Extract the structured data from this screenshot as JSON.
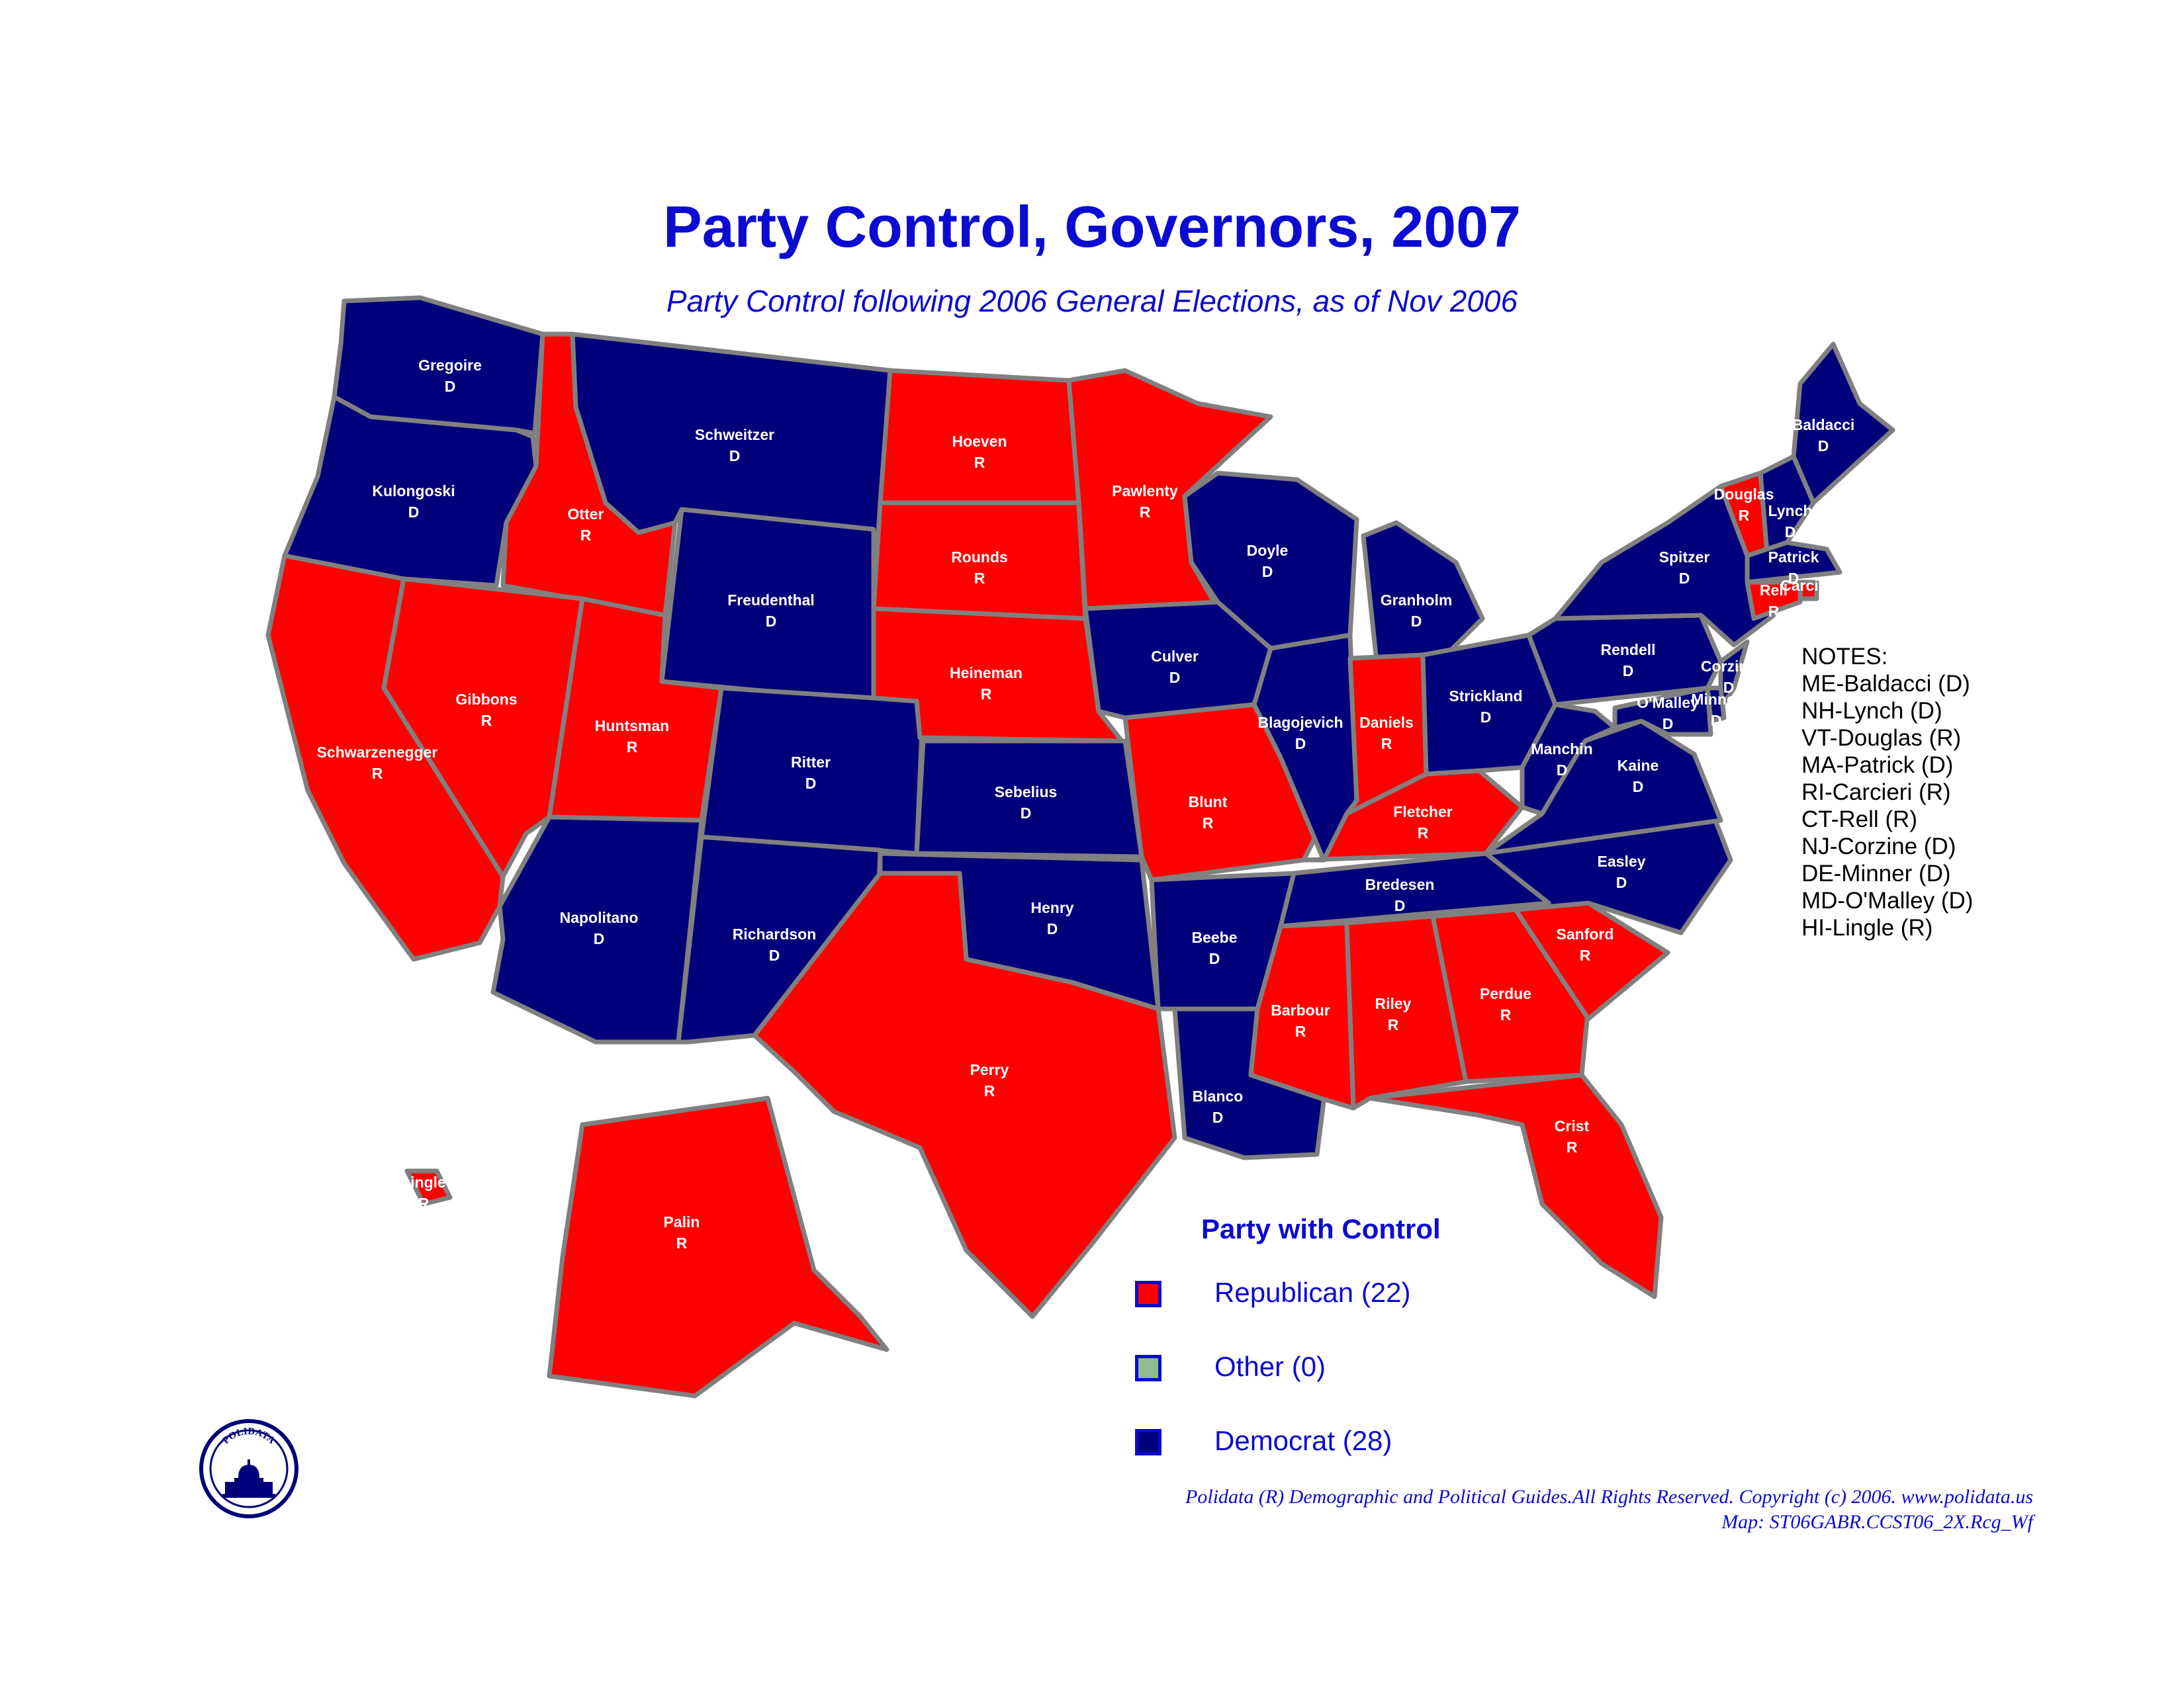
{
  "colors": {
    "republican": "#ff0000",
    "other": "#8fbc8f",
    "democrat": "#00007a",
    "border": "#808080",
    "title": "#0b0bd1",
    "text": "#000000"
  },
  "title": "Party Control, Governors, 2007",
  "subtitle": "Party Control following 2006 General Elections, as of Nov 2006",
  "states": {
    "WA": {
      "governor": "Gregoire",
      "party": "D"
    },
    "OR": {
      "governor": "Kulongoski",
      "party": "D"
    },
    "CA": {
      "governor": "Schwarzenegger",
      "party": "R"
    },
    "ID": {
      "governor": "Otter",
      "party": "R"
    },
    "NV": {
      "governor": "Gibbons",
      "party": "R"
    },
    "MT": {
      "governor": "Schweitzer",
      "party": "D"
    },
    "WY": {
      "governor": "Freudenthal",
      "party": "D"
    },
    "UT": {
      "governor": "Huntsman",
      "party": "R"
    },
    "AZ": {
      "governor": "Napolitano",
      "party": "D"
    },
    "CO": {
      "governor": "Ritter",
      "party": "D"
    },
    "NM": {
      "governor": "Richardson",
      "party": "D"
    },
    "ND": {
      "governor": "Hoeven",
      "party": "R"
    },
    "SD": {
      "governor": "Rounds",
      "party": "R"
    },
    "NE": {
      "governor": "Heineman",
      "party": "R"
    },
    "KS": {
      "governor": "Sebelius",
      "party": "D"
    },
    "OK": {
      "governor": "Henry",
      "party": "D"
    },
    "TX": {
      "governor": "Perry",
      "party": "R"
    },
    "MN": {
      "governor": "Pawlenty",
      "party": "R"
    },
    "IA": {
      "governor": "Culver",
      "party": "D"
    },
    "MO": {
      "governor": "Blunt",
      "party": "R"
    },
    "AR": {
      "governor": "Beebe",
      "party": "D"
    },
    "LA": {
      "governor": "Blanco",
      "party": "D"
    },
    "WI": {
      "governor": "Doyle",
      "party": "D"
    },
    "IL": {
      "governor": "Blagojevich",
      "party": "D"
    },
    "MI": {
      "governor": "Granholm",
      "party": "D"
    },
    "IN": {
      "governor": "Daniels",
      "party": "R"
    },
    "OH": {
      "governor": "Strickland",
      "party": "D"
    },
    "KY": {
      "governor": "Fletcher",
      "party": "R"
    },
    "TN": {
      "governor": "Bredesen",
      "party": "D"
    },
    "MS": {
      "governor": "Barbour",
      "party": "R"
    },
    "AL": {
      "governor": "Riley",
      "party": "R"
    },
    "GA": {
      "governor": "Perdue",
      "party": "R"
    },
    "FL": {
      "governor": "Crist",
      "party": "R"
    },
    "SC": {
      "governor": "Sanford",
      "party": "R"
    },
    "NC": {
      "governor": "Easley",
      "party": "D"
    },
    "VA": {
      "governor": "Kaine",
      "party": "D"
    },
    "WV": {
      "governor": "Manchin",
      "party": "D"
    },
    "PA": {
      "governor": "Rendell",
      "party": "D"
    },
    "NY": {
      "governor": "Spitzer",
      "party": "D"
    },
    "ME": {
      "governor": "Baldacci",
      "party": "D"
    },
    "VT": {
      "governor": "Douglas",
      "party": "R"
    },
    "NH": {
      "governor": "Lynch",
      "party": "D"
    },
    "MA": {
      "governor": "Patrick",
      "party": "D"
    },
    "RI": {
      "governor": "Carcieri",
      "party": "R"
    },
    "CT": {
      "governor": "Rell",
      "party": "R"
    },
    "NJ": {
      "governor": "Corzine",
      "party": "D"
    },
    "DE": {
      "governor": "Minner",
      "party": "D"
    },
    "MD": {
      "governor": "O'Malley",
      "party": "D"
    },
    "AK": {
      "governor": "Palin",
      "party": "R"
    },
    "HI": {
      "governor": "Lingle",
      "party": "R"
    }
  },
  "notes": {
    "heading": "NOTES:",
    "items": [
      "ME-Baldacci (D)",
      "NH-Lynch (D)",
      "VT-Douglas (R)",
      "MA-Patrick (D)",
      "RI-Carcieri (R)",
      "CT-Rell (R)",
      "NJ-Corzine (D)",
      "DE-Minner (D)",
      "MD-O'Malley (D)",
      "HI-Lingle (R)"
    ]
  },
  "legend": {
    "title": "Party with Control",
    "republican": "Republican (22)",
    "other": "Other (0)",
    "democrat": "Democrat (28)"
  },
  "credit": {
    "line1": "Polidata (R) Demographic and Political Guides.All Rights Reserved. Copyright (c) 2006.  www.polidata.us",
    "line2": "Map: ST06GABR.CCST06_2X.Rcg_Wf"
  },
  "logo": {
    "text": "POLIDATA",
    "icon": "capitol-dome-icon"
  }
}
